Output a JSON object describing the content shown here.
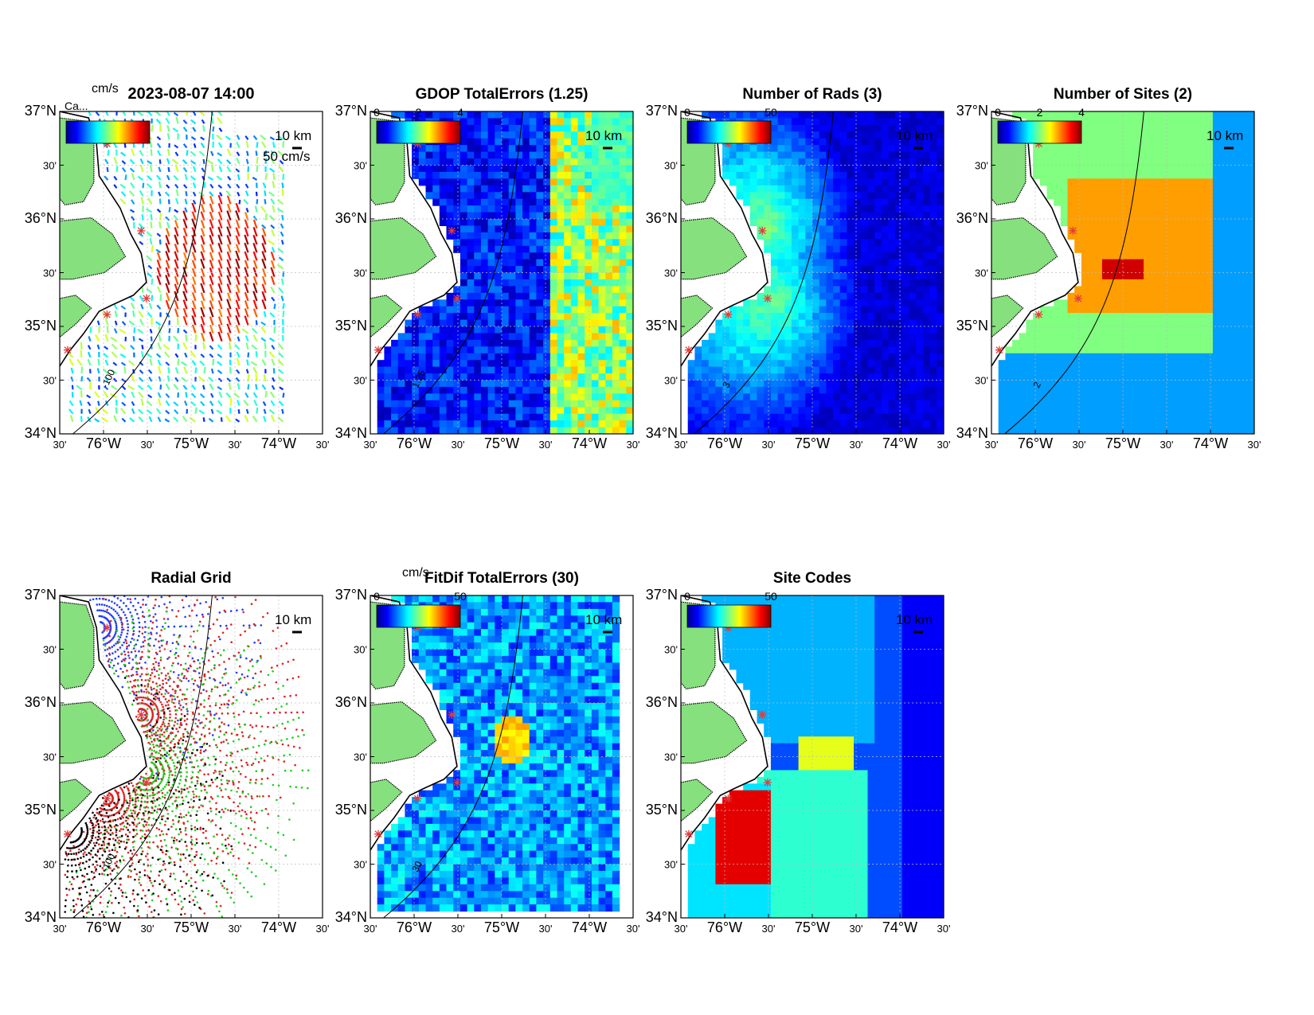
{
  "figure": {
    "panels": [
      {
        "id": "velocity",
        "title": "2023-08-07 14:00",
        "colorbar": {
          "unit": "cm/s",
          "ticks": []
        },
        "scale_label": "10 km",
        "arrow_label": "50 cm/s",
        "contour_label": "-100",
        "overlay": "Ca..."
      },
      {
        "id": "gdop",
        "title": "GDOP TotalErrors (1.25)",
        "colorbar": {
          "unit": "",
          "ticks": [
            "0",
            "2",
            "4"
          ]
        },
        "scale_label": "10 km",
        "contour_label": "1.25"
      },
      {
        "id": "nrads",
        "title": "Number of Rads (3)",
        "colorbar": {
          "unit": "",
          "ticks": [
            "0",
            "50"
          ]
        },
        "scale_label": "10 km",
        "contour_label": "3"
      },
      {
        "id": "nsites",
        "title": "Number of Sites (2)",
        "colorbar": {
          "unit": "",
          "ticks": [
            "0",
            "2",
            "4"
          ]
        },
        "scale_label": "10 km",
        "contour_label": "2"
      },
      {
        "id": "radgrid",
        "title": "Radial Grid",
        "colorbar": null,
        "scale_label": "10 km",
        "contour_label": "-100"
      },
      {
        "id": "fitdif",
        "title": "FitDif TotalErrors (30)",
        "colorbar": {
          "unit": "cm/s",
          "ticks": [
            "0",
            "50"
          ]
        },
        "scale_label": "10 km",
        "contour_label": "30"
      },
      {
        "id": "sitecodes",
        "title": "Site Codes",
        "colorbar": {
          "unit": "",
          "ticks": [
            "0",
            "50"
          ]
        },
        "scale_label": "10 km"
      }
    ],
    "axes": {
      "lat_ticks": [
        "37°N",
        "30'",
        "36°N",
        "30'",
        "35°N",
        "30'",
        "34°N"
      ],
      "lon_ticks": [
        "30'",
        "76°W",
        "30'",
        "75°W",
        "30'",
        "74°W",
        "30'"
      ]
    },
    "colors": {
      "land": "#86e07e",
      "coast": "#000000",
      "site_marker": "#e23b3b",
      "grid": "#bdbdbd"
    }
  }
}
